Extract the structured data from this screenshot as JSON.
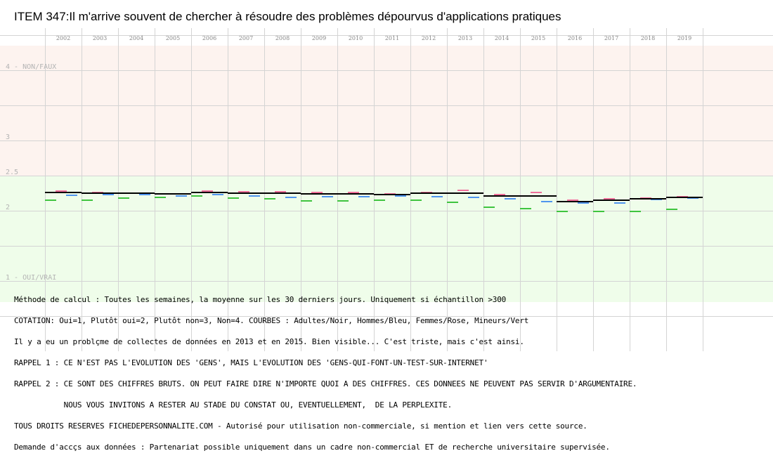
{
  "chart_data": {
    "type": "line",
    "title": "ITEM 347:Il m'arrive souvent de chercher à résoudre des problèmes dépourvus d'applications pratiques",
    "categories": [
      "2002",
      "2003",
      "2004",
      "2005",
      "2006",
      "2007",
      "2008",
      "2009",
      "2010",
      "2011",
      "2012",
      "2013",
      "2014",
      "2015",
      "2016",
      "2017",
      "2018",
      "2019"
    ],
    "y_ticks": [
      {
        "value": 4,
        "label": "4 - NON/FAUX"
      },
      {
        "value": 3,
        "label": "3"
      },
      {
        "value": 2.5,
        "label": "2.5"
      },
      {
        "value": 2,
        "label": "2"
      },
      {
        "value": 1,
        "label": "1 - OUI/VRAI"
      }
    ],
    "ylim": [
      1,
      4
    ],
    "grid": true,
    "zones": [
      {
        "from": 2.5,
        "to": 4.35,
        "color": "#fdf3ef"
      },
      {
        "from": 0.7,
        "to": 2.5,
        "color": "#effdea"
      }
    ],
    "series": [
      {
        "name": "Adultes",
        "color": "#000000",
        "values": [
          2.26,
          2.25,
          2.25,
          2.24,
          2.26,
          2.25,
          2.25,
          2.24,
          2.24,
          2.23,
          2.25,
          2.25,
          2.21,
          2.21,
          2.13,
          2.15,
          2.17,
          2.19
        ]
      },
      {
        "name": "Hommes",
        "color": "#4f95ee",
        "values": [
          2.22,
          2.23,
          2.23,
          2.21,
          2.23,
          2.21,
          2.19,
          2.2,
          2.2,
          2.21,
          2.2,
          2.19,
          2.17,
          2.13,
          2.11,
          2.11,
          2.16,
          2.18
        ]
      },
      {
        "name": "Femmes",
        "color": "#ee6f9a",
        "values": [
          2.28,
          2.26,
          2.25,
          2.24,
          2.28,
          2.27,
          2.27,
          2.26,
          2.26,
          2.24,
          2.26,
          2.29,
          2.23,
          2.26,
          2.15,
          2.17,
          2.18,
          2.2
        ]
      },
      {
        "name": "Mineurs",
        "color": "#3fc43f",
        "values": [
          2.15,
          2.15,
          2.18,
          2.19,
          2.21,
          2.18,
          2.17,
          2.14,
          2.14,
          2.15,
          2.15,
          2.12,
          2.05,
          2.03,
          1.99,
          1.99,
          1.99,
          2.02
        ]
      }
    ]
  },
  "notes": [
    "Méthode de calcul : Toutes les semaines, la moyenne sur les 30 derniers jours. Uniquement si échantillon >300",
    "COTATION: Oui=1, Plutôt oui=2, Plutôt non=3, Non=4. COURBES : Adultes/Noir, Hommes/Bleu, Femmes/Rose, Mineurs/Vert",
    "Il y a eu un problçme de collectes de données en 2013 et en 2015. Bien visible... C'est triste, mais c'est ainsi.",
    "RAPPEL 1 : CE N'EST PAS L'EVOLUTION DES 'GENS', MAIS L'EVOLUTION DES 'GENS-QUI-FONT-UN-TEST-SUR-INTERNET'",
    "RAPPEL 2 : CE SONT DES CHIFFRES BRUTS. ON PEUT FAIRE DIRE N'IMPORTE QUOI A DES CHIFFRES. CES DONNEES NE PEUVENT PAS SERVIR D'ARGUMENTAIRE.",
    "           NOUS VOUS INVITONS A RESTER AU STADE DU CONSTAT OU, EVENTUELLEMENT,  DE LA PERPLEXITE.",
    "TOUS DROITS RESERVES FICHEDEPERSONNALITE.COM - Autorisé pour utilisation non-commerciale, si mention et lien vers cette source.",
    "Demande d'accçs aux données : Partenariat possible uniquement dans un cadre non-commercial ET de recherche universitaire supervisée."
  ]
}
